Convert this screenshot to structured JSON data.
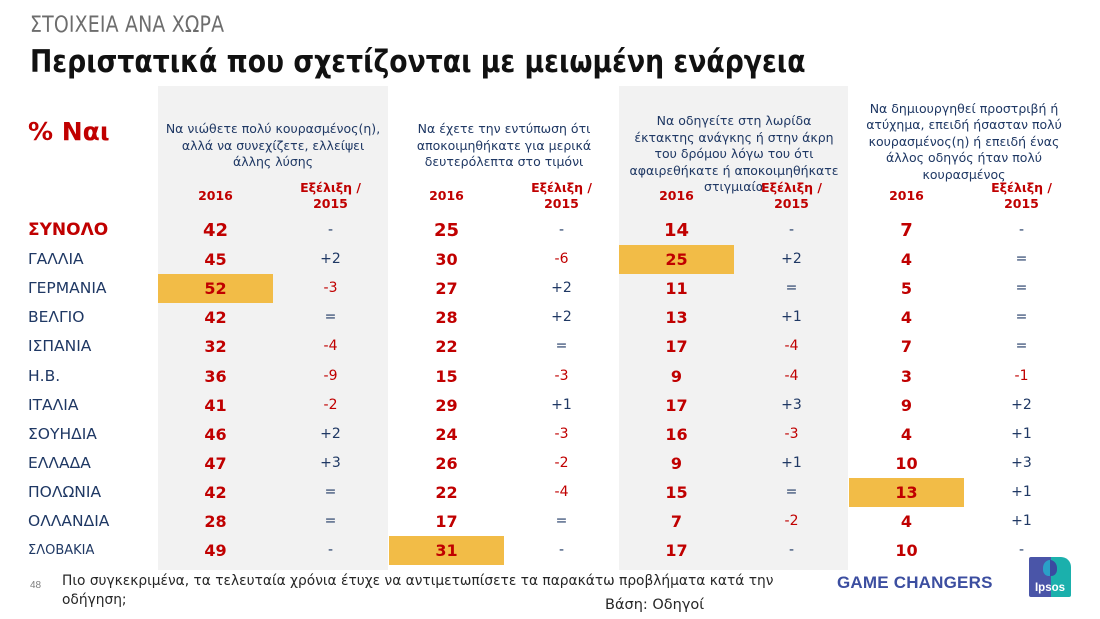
{
  "header": {
    "subtitle": "ΣΤΟΙΧΕΙΑ ΑΝΑ ΧΩΡΑ",
    "title": "Περιστατικά που σχετίζονται με μειωμένη ενάργεια",
    "measure_label": "% Ναι"
  },
  "questions": [
    {
      "text": "Να νιώθετε πολύ κουρασμένος(η), αλλά να συνεχίζετε, ελλείψει άλλης λύσης",
      "col_2016": "2016",
      "col_change": "Εξέλιξη / 2015"
    },
    {
      "text": "Να έχετε την εντύπωση ότι αποκοιμηθήκατε για μερικά δευτερόλεπτα στο τιμόνι",
      "col_2016": "2016",
      "col_change": "Εξέλιξη / 2015"
    },
    {
      "text": "Να οδηγείτε στη λωρίδα έκτακτης ανάγκης ή στην άκρη του δρόμου λόγω του ότι αφαιρεθήκατε ή αποκοιμηθήκατε στιγμιαία",
      "col_2016": "2016",
      "col_change": "Εξέλιξη / 2015"
    },
    {
      "text": "Να δημιουργηθεί προστριβή ή ατύχημα, επειδή ήσασταν πολύ κουρασμένος(η) ή επειδή ένας άλλος οδηγός ήταν πολύ κουρασμένος",
      "col_2016": "2016",
      "col_change": "Εξέλιξη / 2015"
    }
  ],
  "rows": [
    {
      "country": "ΣΥΝΟΛΟ",
      "type": "total",
      "values": [
        "42",
        "-",
        "25",
        "-",
        "14",
        "-",
        "7",
        "-"
      ],
      "highlight": [],
      "neg": [
        7
      ]
    },
    {
      "country": "ΓΑΛΛΙΑ",
      "values": [
        "45",
        "+2",
        "30",
        "-6",
        "25",
        "+2",
        "4",
        "="
      ],
      "highlight": [
        2
      ],
      "neg": [
        1
      ]
    },
    {
      "country": "ΓΕΡΜΑΝΙΑ",
      "values": [
        "52",
        "-3",
        "27",
        "+2",
        "11",
        "=",
        "5",
        "="
      ],
      "highlight": [
        0
      ],
      "neg": [
        0
      ]
    },
    {
      "country": "ΒΕΛΓΙΟ",
      "values": [
        "42",
        "=",
        "28",
        "+2",
        "13",
        "+1",
        "4",
        "="
      ],
      "highlight": [],
      "neg": []
    },
    {
      "country": "ΙΣΠΑΝΙΑ",
      "values": [
        "32",
        "-4",
        "22",
        "=",
        "17",
        "-4",
        "7",
        "="
      ],
      "highlight": [],
      "neg": [
        0,
        2
      ]
    },
    {
      "country": "Η.Β.",
      "values": [
        "36",
        "-9",
        "15",
        "-3",
        "9",
        "-4",
        "3",
        "-1"
      ],
      "highlight": [],
      "neg": [
        0,
        1,
        2,
        3
      ]
    },
    {
      "country": "ΙΤΑΛΙΑ",
      "values": [
        "41",
        "-2",
        "29",
        "+1",
        "17",
        "+3",
        "9",
        "+2"
      ],
      "highlight": [],
      "neg": [
        0
      ]
    },
    {
      "country": "ΣΟΥΗΔΙΑ",
      "values": [
        "46",
        "+2",
        "24",
        "-3",
        "16",
        "-3",
        "4",
        "+1"
      ],
      "highlight": [],
      "neg": [
        1,
        2
      ]
    },
    {
      "country": "ΕΛΛΑΔΑ",
      "values": [
        "47",
        "+3",
        "26",
        "-2",
        "9",
        "+1",
        "10",
        "+3"
      ],
      "highlight": [],
      "neg": [
        1
      ]
    },
    {
      "country": "ΠΟΛΩΝΙΑ",
      "values": [
        "42",
        "=",
        "22",
        "-4",
        "15",
        "=",
        "13",
        "+1"
      ],
      "highlight": [
        3
      ],
      "neg": [
        1
      ]
    },
    {
      "country": "ΟΛΛΑΝΔΙΑ",
      "values": [
        "28",
        "=",
        "17",
        "=",
        "7",
        "-2",
        "4",
        "+1"
      ],
      "highlight": [],
      "neg": [
        2
      ]
    },
    {
      "country": "ΣΛΟΒΑΚΙΑ",
      "type": "small",
      "values": [
        "49",
        "-",
        "31",
        "-",
        "17",
        "-",
        "10",
        "-"
      ],
      "highlight": [
        1
      ],
      "neg": []
    }
  ],
  "footer": {
    "page_number": "48",
    "question": "Πιο συγκεκριμένα, τα τελευταία χρόνια έτυχε να αντιμετωπίσετε τα παρακάτω προβλήματα κατά την οδήγηση;",
    "base": "Βάση: Οδηγοί",
    "brand": "GAME CHANGERS",
    "logo_text": "Ipsos"
  },
  "colors": {
    "accent_red": "#c00000",
    "navy_text": "#1f3864",
    "highlight": "#f2bc47",
    "panel_grey": "#f2f2f2",
    "brand_blue": "#3c4ea0"
  }
}
